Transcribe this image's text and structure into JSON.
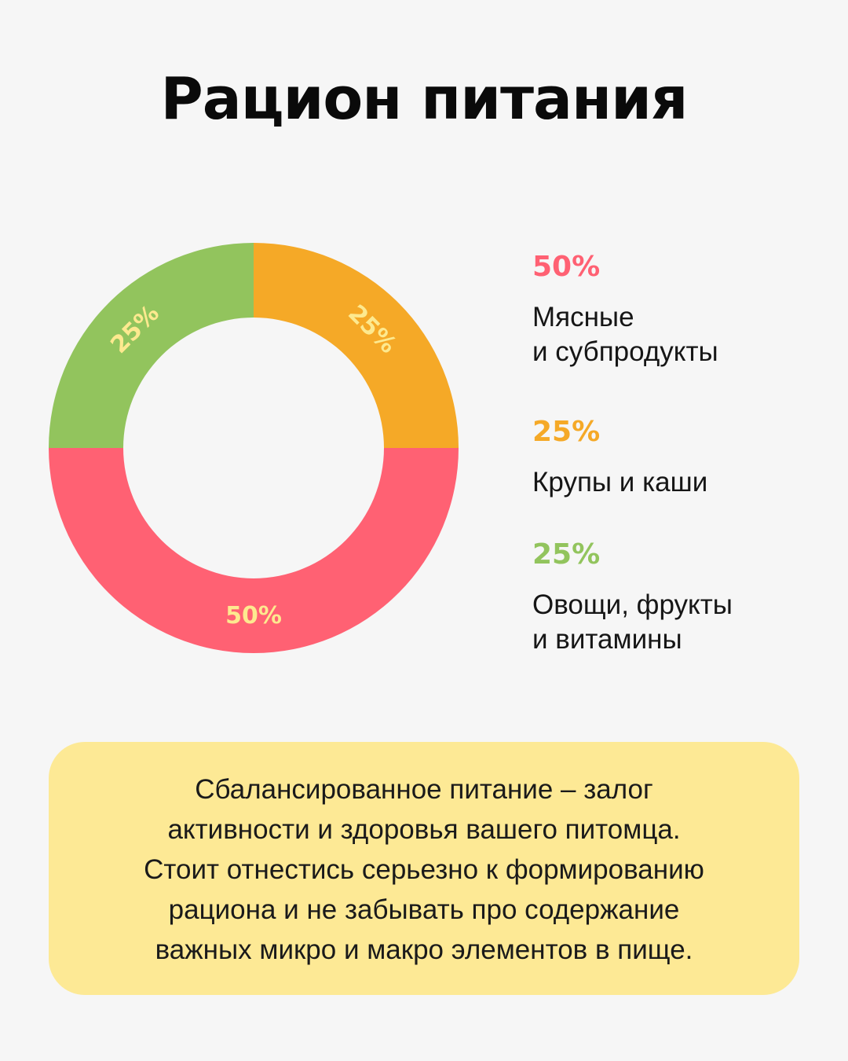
{
  "title": "Рацион питания",
  "chart_data": {
    "type": "pie",
    "style": "donut",
    "categories": [
      "Мясные и субпродукты",
      "Крупы и каши",
      "Овощи, фрукты и витамины"
    ],
    "values": [
      50,
      25,
      25
    ],
    "value_labels": [
      "50%",
      "25%",
      "25%"
    ],
    "colors": [
      "#ff6173",
      "#f5a927",
      "#92c45d"
    ],
    "label_color": "#fde98f"
  },
  "legend": [
    {
      "percent": "50%",
      "label": "Мясные\nи субпродукты",
      "color": "#ff6173"
    },
    {
      "percent": "25%",
      "label": "Крупы и каши",
      "color": "#f5a927"
    },
    {
      "percent": "25%",
      "label": "Овощи, фрукты\nи витамины",
      "color": "#92c45d"
    }
  ],
  "note": {
    "text": "Сбалансированное питание – залог\nактивности и здоровья вашего питомца.\nСтоит отнестись серьезно к формированию\nрациона и не забывать про содержание\nважных микро и макро элементов в пище.",
    "background": "#fde995"
  }
}
